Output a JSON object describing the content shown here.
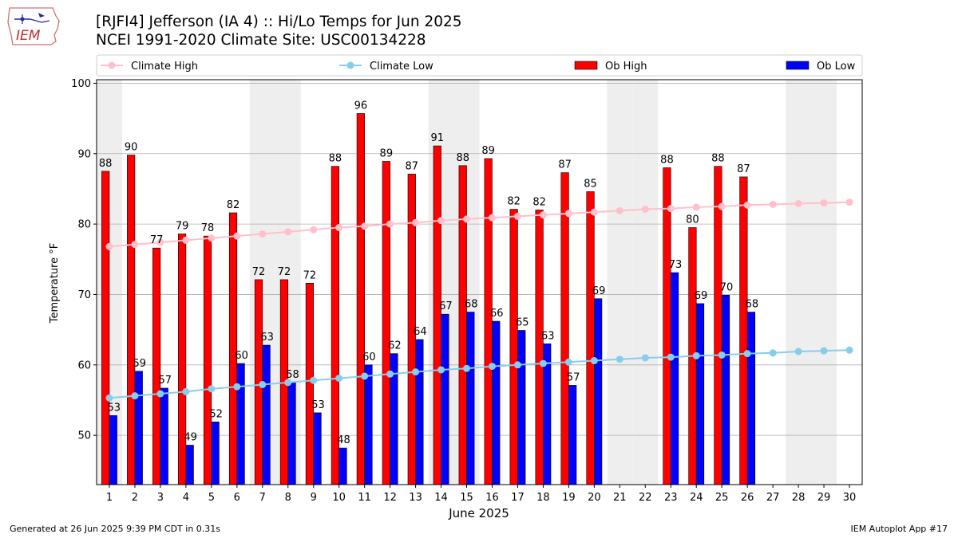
{
  "header": {
    "title_line1": "[RJFI4] Jefferson (IA 4) :: Hi/Lo Temps for Jun 2025",
    "title_line2": "NCEI 1991-2020 Climate Site: USC00134228",
    "logo_text": "IEM"
  },
  "footer": {
    "generated": "Generated at 26 Jun 2025 9:39 PM CDT in 0.31s",
    "app": "IEM Autoplot App #17"
  },
  "colors": {
    "ob_high": "#ff0000",
    "ob_low": "#0000ff",
    "climate_high": "#ffc0cb",
    "climate_low": "#87ceeb",
    "weekend_band": "#eeeeee",
    "grid": "#b0b0b0"
  },
  "chart_data": {
    "type": "bar",
    "xlabel": "June 2025",
    "ylabel": "Temperature °F",
    "xlim": [
      0.5,
      30.5
    ],
    "ylim": [
      43,
      100.5
    ],
    "yticks": [
      50,
      60,
      70,
      80,
      90,
      100
    ],
    "grid": "horizontal",
    "legend_position": "top",
    "weekend_days": [
      1,
      7,
      8,
      14,
      15,
      21,
      22,
      28,
      29
    ],
    "days": [
      1,
      2,
      3,
      4,
      5,
      6,
      7,
      8,
      9,
      10,
      11,
      12,
      13,
      14,
      15,
      16,
      17,
      18,
      19,
      20,
      21,
      22,
      23,
      24,
      25,
      26,
      27,
      28,
      29,
      30
    ],
    "series": [
      {
        "name": "Climate High",
        "kind": "line",
        "values": [
          76.8,
          77.1,
          77.4,
          77.7,
          78.0,
          78.3,
          78.6,
          78.9,
          79.2,
          79.5,
          79.7,
          80.0,
          80.2,
          80.5,
          80.7,
          80.9,
          81.1,
          81.3,
          81.5,
          81.7,
          81.9,
          82.1,
          82.2,
          82.4,
          82.5,
          82.7,
          82.8,
          82.9,
          83.0,
          83.1
        ]
      },
      {
        "name": "Climate Low",
        "kind": "line",
        "values": [
          55.3,
          55.6,
          55.9,
          56.2,
          56.6,
          56.9,
          57.2,
          57.5,
          57.8,
          58.1,
          58.4,
          58.7,
          59.0,
          59.3,
          59.5,
          59.8,
          60.0,
          60.2,
          60.4,
          60.6,
          60.8,
          61.0,
          61.1,
          61.3,
          61.4,
          61.6,
          61.7,
          61.9,
          62.0,
          62.1
        ]
      },
      {
        "name": "Ob High",
        "kind": "bar",
        "values": [
          87.5,
          89.8,
          76.6,
          78.6,
          78.3,
          81.6,
          72.1,
          72.1,
          71.6,
          88.2,
          95.7,
          88.9,
          87.1,
          91.1,
          88.3,
          89.3,
          82.1,
          82.0,
          87.3,
          84.6,
          null,
          null,
          88.0,
          79.5,
          88.2,
          86.7,
          null,
          null,
          null,
          null
        ],
        "labels": [
          "88",
          "90",
          "77",
          "79",
          "78",
          "82",
          "72",
          "72",
          "72",
          "88",
          "96",
          "89",
          "87",
          "91",
          "88",
          "89",
          "82",
          "82",
          "87",
          "85",
          "",
          "",
          "88",
          "80",
          "88",
          "87",
          "",
          "",
          "",
          ""
        ]
      },
      {
        "name": "Ob Low",
        "kind": "bar",
        "values": [
          52.8,
          59.1,
          56.7,
          48.6,
          51.9,
          60.2,
          62.8,
          57.5,
          53.2,
          48.2,
          60.0,
          61.6,
          63.6,
          67.2,
          67.5,
          66.2,
          64.9,
          63.0,
          57.1,
          69.4,
          null,
          null,
          73.1,
          68.7,
          69.9,
          67.5,
          null,
          null,
          null,
          null
        ],
        "labels": [
          "53",
          "59",
          "57",
          "49",
          "52",
          "60",
          "63",
          "58",
          "53",
          "48",
          "60",
          "62",
          "64",
          "67",
          "68",
          "66",
          "65",
          "63",
          "57",
          "69",
          "",
          "",
          "73",
          "69",
          "70",
          "68",
          "",
          "",
          "",
          ""
        ]
      }
    ]
  }
}
